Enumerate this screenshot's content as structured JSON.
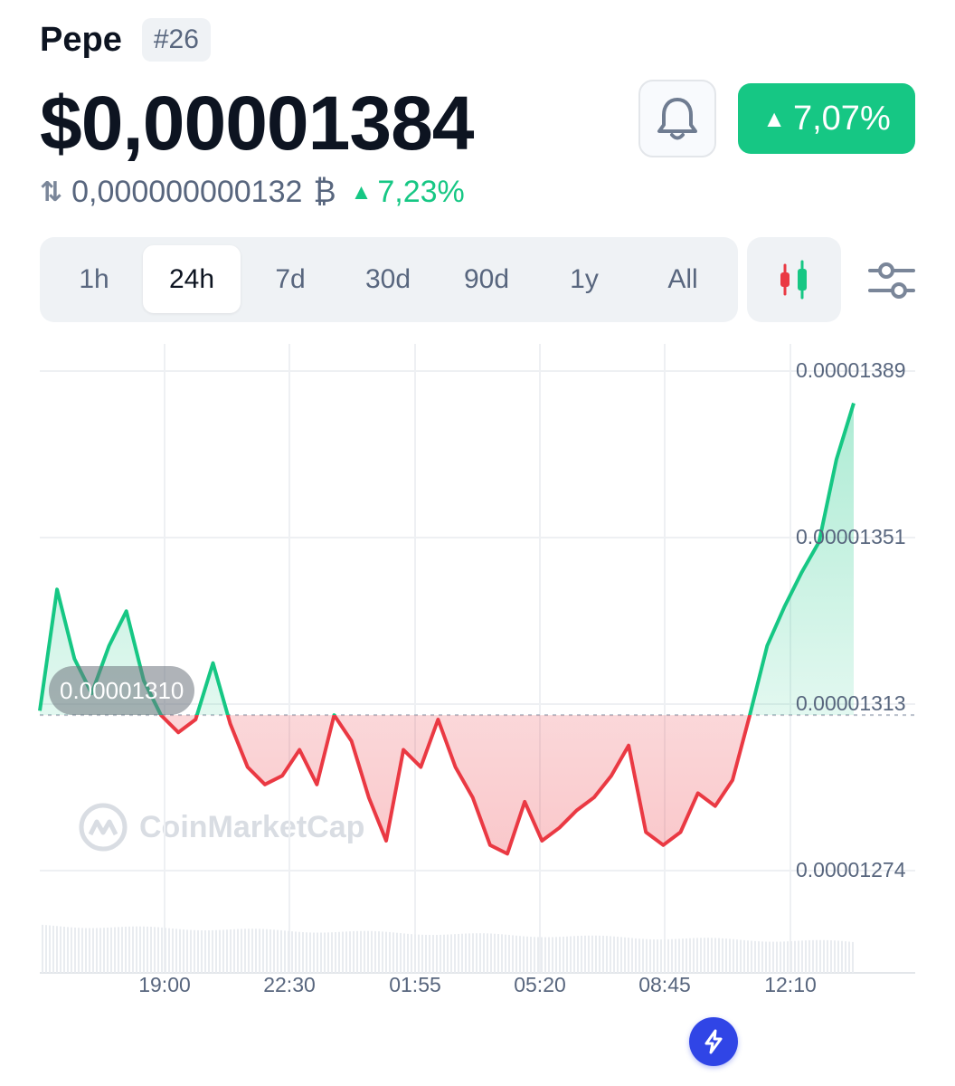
{
  "coin": {
    "name": "Pepe",
    "rank": "#26",
    "price": "$0,00001384",
    "change_24h": "7,07%",
    "btc_price": "0,000000000132",
    "btc_symbol": "₿",
    "btc_change": "7,23%"
  },
  "range_tabs": [
    {
      "label": "1h",
      "active": false
    },
    {
      "label": "24h",
      "active": true
    },
    {
      "label": "7d",
      "active": false
    },
    {
      "label": "30d",
      "active": false
    },
    {
      "label": "90d",
      "active": false
    },
    {
      "label": "1y",
      "active": false
    },
    {
      "label": "All",
      "active": false
    }
  ],
  "icons": {
    "bell": "bell-icon",
    "candlestick": "candlestick-icon",
    "filter": "sliders-icon",
    "swap": "swap-arrows-icon",
    "flash": "lightning-icon",
    "watermark_logo": "coinmarketcap-logo"
  },
  "watermark": "CoinMarketCap",
  "cursor_value": "0.00001310",
  "colors": {
    "up": "#16c784",
    "down": "#ea3943",
    "accent": "#3045e6"
  },
  "chart_data": {
    "type": "line",
    "title": "",
    "y_ticks": [
      "0.00001389",
      "0.00001351",
      "0.00001313",
      "0.00001274"
    ],
    "x_ticks": [
      "19:00",
      "22:30",
      "01:55",
      "05:20",
      "08:45",
      "12:10"
    ],
    "ylim": [
      1.264e-05,
      1.396e-05
    ],
    "baseline": 1.312e-05,
    "grid": true,
    "x": [
      "15:30",
      "16:00",
      "16:30",
      "17:00",
      "17:30",
      "18:00",
      "18:30",
      "19:00",
      "19:30",
      "20:00",
      "20:30",
      "21:00",
      "21:30",
      "22:00",
      "22:30",
      "23:00",
      "23:30",
      "00:00",
      "00:30",
      "01:00",
      "01:30",
      "02:00",
      "02:30",
      "03:00",
      "03:30",
      "04:00",
      "04:30",
      "05:00",
      "05:30",
      "06:00",
      "06:30",
      "07:00",
      "07:30",
      "08:00",
      "08:30",
      "09:00",
      "09:30",
      "10:00",
      "10:30",
      "11:00",
      "11:30",
      "12:00",
      "12:30",
      "13:00",
      "13:30",
      "14:00",
      "14:30",
      "15:00"
    ],
    "values": [
      1.313e-05,
      1.341e-05,
      1.325e-05,
      1.317e-05,
      1.328e-05,
      1.336e-05,
      1.32e-05,
      1.312e-05,
      1.308e-05,
      1.311e-05,
      1.324e-05,
      1.31e-05,
      1.3e-05,
      1.296e-05,
      1.298e-05,
      1.304e-05,
      1.296e-05,
      1.312e-05,
      1.306e-05,
      1.293e-05,
      1.283e-05,
      1.304e-05,
      1.3e-05,
      1.311e-05,
      1.3e-05,
      1.293e-05,
      1.282e-05,
      1.28e-05,
      1.292e-05,
      1.283e-05,
      1.286e-05,
      1.29e-05,
      1.293e-05,
      1.298e-05,
      1.305e-05,
      1.285e-05,
      1.282e-05,
      1.285e-05,
      1.294e-05,
      1.291e-05,
      1.297e-05,
      1.312e-05,
      1.328e-05,
      1.337e-05,
      1.345e-05,
      1.352e-05,
      1.371e-05,
      1.384e-05
    ],
    "volume_label": ""
  }
}
